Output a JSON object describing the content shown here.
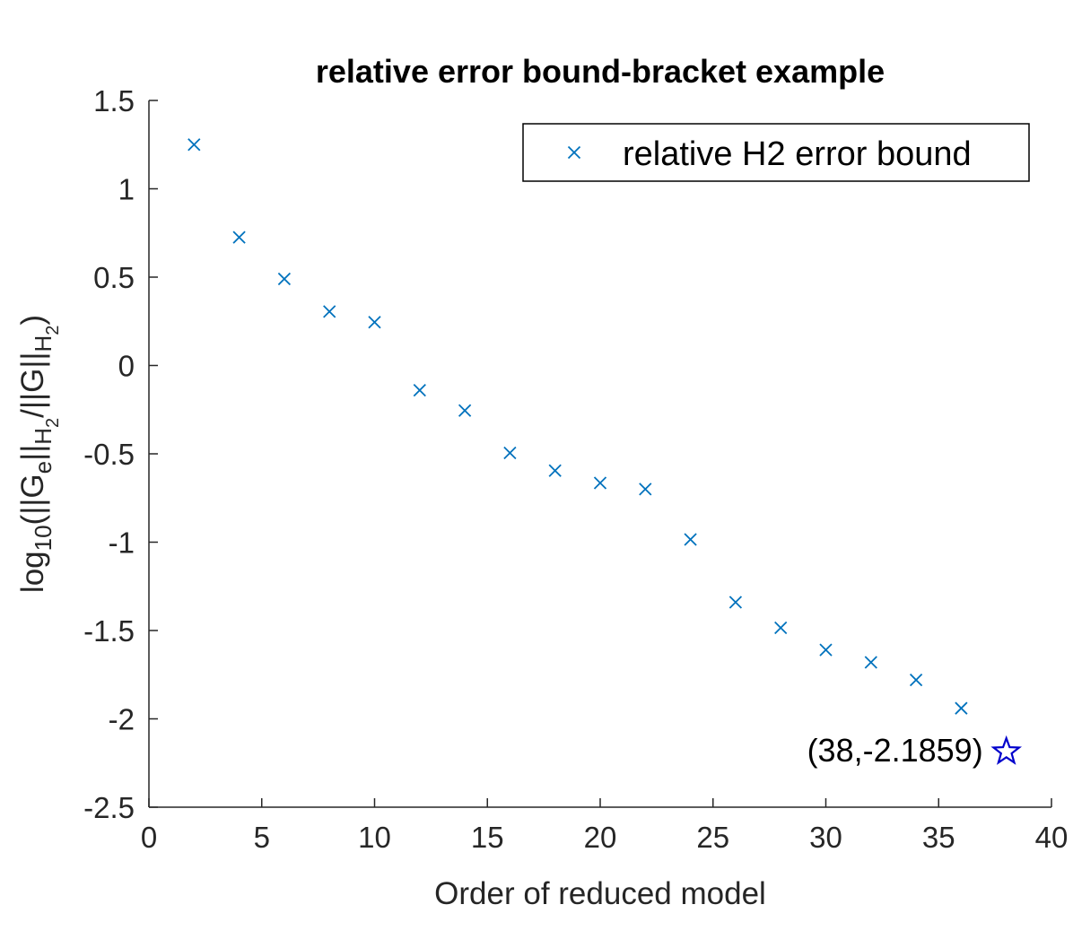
{
  "chart_data": {
    "type": "scatter",
    "title": "relative error bound-bracket example",
    "xlabel": "Order of reduced model",
    "ylabel": {
      "p1": "log",
      "p1_sub": "10",
      "p2": "(||G",
      "p2_sub": "e",
      "p3": "||",
      "p3_sub": "H",
      "p3_subsub": "2",
      "p4": "/||G||",
      "p4_sub": "H",
      "p4_subsub": "2",
      "p5": ")"
    },
    "xlim": [
      0,
      40
    ],
    "ylim": [
      -2.5,
      1.5
    ],
    "xticks": [
      0,
      5,
      10,
      15,
      20,
      25,
      30,
      35,
      40
    ],
    "yticks": [
      -2.5,
      -2,
      -1.5,
      -1,
      -0.5,
      0,
      0.5,
      1,
      1.5
    ],
    "xtick_labels": [
      "0",
      "5",
      "10",
      "15",
      "20",
      "25",
      "30",
      "35",
      "40"
    ],
    "ytick_labels": [
      "-2.5",
      "-2",
      "-1.5",
      "-1",
      "-0.5",
      "0",
      "0.5",
      "1",
      "1.5"
    ],
    "grid": false,
    "legend_position": "top-right",
    "series": [
      {
        "name": "relative H2 error bound",
        "marker": "x",
        "color": "#0072BD",
        "x": [
          2,
          4,
          6,
          8,
          10,
          12,
          14,
          16,
          18,
          20,
          22,
          24,
          26,
          28,
          30,
          32,
          34,
          36
        ],
        "y": [
          1.25,
          0.725,
          0.49,
          0.305,
          0.245,
          -0.14,
          -0.255,
          -0.495,
          -0.595,
          -0.665,
          -0.7,
          -0.985,
          -1.34,
          -1.485,
          -1.61,
          -1.68,
          -1.78,
          -1.94
        ]
      }
    ],
    "annotation": {
      "text": "(38,-2.1859)",
      "x": 38,
      "y": -2.1859,
      "marker": "pentagram",
      "color": "#0000CC"
    }
  }
}
